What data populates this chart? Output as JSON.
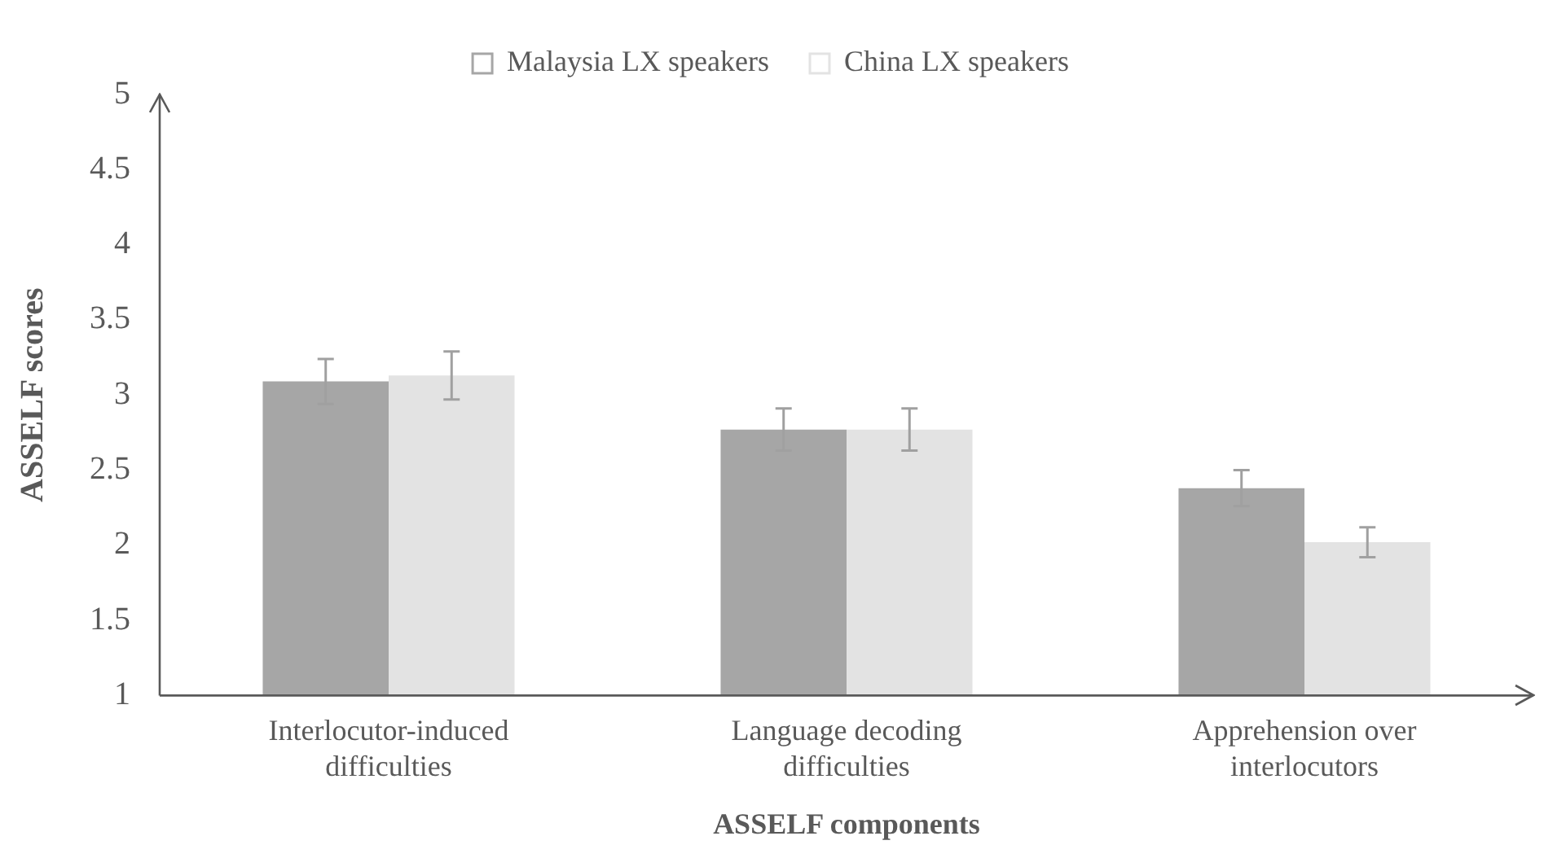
{
  "chart_data": {
    "type": "bar",
    "xlabel": "ASSELF components",
    "ylabel": "ASSELF scores",
    "categories": [
      "Interlocutor-induced difficulties",
      "Language decoding difficulties",
      "Apprehension over interlocutors"
    ],
    "series": [
      {
        "name": "Malaysia LX speakers",
        "color": "#a6a6a6",
        "values": [
          3.09,
          2.77,
          2.38
        ],
        "errors": [
          0.15,
          0.14,
          0.12
        ]
      },
      {
        "name": "China LX speakers",
        "color": "#e3e3e3",
        "values": [
          3.13,
          2.77,
          2.02
        ],
        "errors": [
          0.16,
          0.14,
          0.1
        ]
      }
    ],
    "ylim": [
      1,
      5
    ],
    "yticks": [
      1,
      1.5,
      2,
      2.5,
      3,
      3.5,
      4,
      4.5,
      5
    ],
    "grid": false,
    "legend": "top"
  }
}
